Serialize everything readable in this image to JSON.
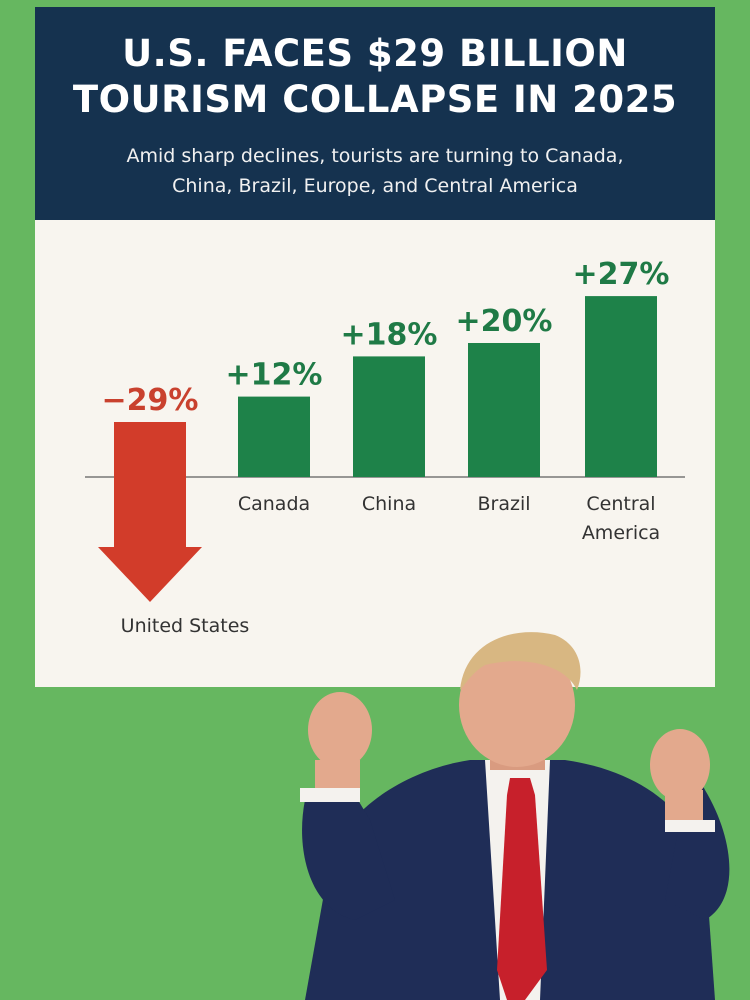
{
  "header": {
    "title_line1": "U.S. FACES $29 BILLION",
    "title_line2": "TOURISM COLLAPSE IN 2025",
    "subtitle_line1": "Amid sharp declines, tourists are turning to Canada,",
    "subtitle_line2": "China, Brazil, Europe, and Central America"
  },
  "chart_data": {
    "type": "bar",
    "title": "U.S. FACES $29 BILLION TOURISM COLLAPSE IN 2025",
    "subtitle": "Amid sharp declines, tourists are turning to Canada, China, Brazil, Europe, and Central America",
    "xlabel": "",
    "ylabel": "",
    "grid": false,
    "categories": [
      "United States",
      "Canada",
      "China",
      "Brazil",
      "Central America"
    ],
    "category_lines": [
      [
        "United States"
      ],
      [
        "Canada"
      ],
      [
        "China"
      ],
      [
        "Brazil"
      ],
      [
        "Central",
        "America"
      ]
    ],
    "values": [
      -29,
      12,
      18,
      20,
      27
    ],
    "value_labels": [
      "−29%",
      "+12%",
      "+18%",
      "+20%",
      "+27%"
    ],
    "negative_style": "down-arrow",
    "ylim": [
      -35,
      30
    ],
    "colors": {
      "positive": "#1e8249",
      "negative": "#d23c2a",
      "positive_label": "#1f7a46",
      "negative_label": "#c9412e"
    }
  },
  "figure": {
    "description_icon": "person-cutout",
    "colors": {
      "suit": "#1f2d57",
      "tie": "#c7202b",
      "shirt": "#f4f2ee",
      "skin": "#e3a98d",
      "hair": "#d8b782"
    }
  }
}
